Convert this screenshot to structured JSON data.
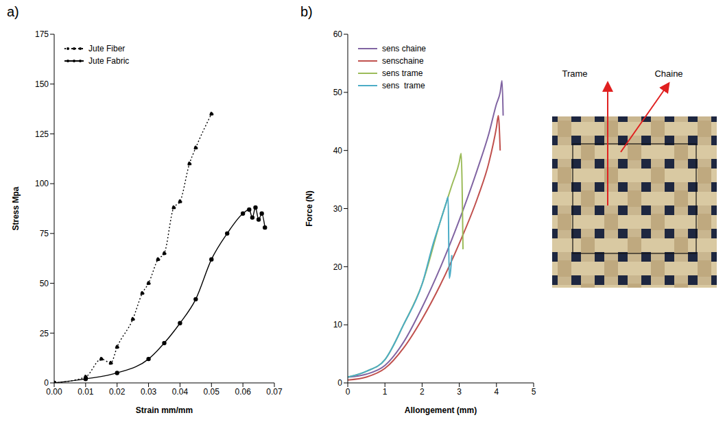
{
  "chart_data": [
    {
      "panel": "a)",
      "type": "line",
      "x_label": "Strain mm/mm",
      "y_label": "Stress Mpa",
      "xlim": [
        0,
        0.07
      ],
      "xticks": [
        {
          "value": 0,
          "label": "0.00"
        },
        {
          "value": 0.01,
          "label": "0.01"
        },
        {
          "value": 0.02,
          "label": "0.02"
        },
        {
          "value": 0.03,
          "label": "0.03"
        },
        {
          "value": 0.04,
          "label": "0.04"
        },
        {
          "value": 0.05,
          "label": "0.05"
        },
        {
          "value": 0.06,
          "label": "0.06"
        },
        {
          "value": 0.07,
          "label": "0.07"
        }
      ],
      "ylim": [
        0,
        175
      ],
      "yticks": [
        0,
        25,
        50,
        75,
        100,
        125,
        150,
        175
      ],
      "grid": false,
      "legend": "upper left",
      "series": [
        {
          "name": "Jute Fiber",
          "color": "#000000",
          "line_style": "dotted",
          "marker": "circle",
          "x": [
            0,
            0.01,
            0.015,
            0.018,
            0.02,
            0.025,
            0.028,
            0.03,
            0.033,
            0.035,
            0.038,
            0.04,
            0.043,
            0.045,
            0.05
          ],
          "values": [
            0,
            3,
            12,
            10,
            18,
            32,
            45,
            50,
            62,
            65,
            88,
            91,
            110,
            118,
            135
          ]
        },
        {
          "name": "Jute Fabric",
          "color": "#000000",
          "line_style": "solid",
          "marker": "circle",
          "x": [
            0,
            0.01,
            0.02,
            0.03,
            0.035,
            0.04,
            0.045,
            0.05,
            0.055,
            0.06,
            0.062,
            0.063,
            0.064,
            0.065,
            0.066,
            0.067
          ],
          "values": [
            0,
            2,
            5,
            12,
            20,
            30,
            42,
            62,
            75,
            85,
            87,
            83,
            88,
            82,
            85,
            78
          ]
        }
      ]
    },
    {
      "panel": "b)",
      "type": "line",
      "x_label": "Allongement (mm)",
      "y_label": "Force (N)",
      "xlim": [
        0,
        5
      ],
      "xticks": [
        0,
        1,
        2,
        3,
        4,
        5
      ],
      "ylim": [
        0,
        60
      ],
      "yticks": [
        0,
        10,
        20,
        30,
        40,
        50,
        60
      ],
      "grid": false,
      "legend": "upper left",
      "annotations": [
        "Trame",
        "Chaine"
      ],
      "series": [
        {
          "name": "sens chaine",
          "color": "#8064a2",
          "line_style": "solid",
          "marker": "none",
          "x": [
            0,
            0.5,
            1,
            1.5,
            2,
            2.5,
            3,
            3.5,
            3.8,
            4,
            4.1,
            4.15,
            4.18
          ],
          "values": [
            1,
            1.5,
            3,
            7,
            13,
            20,
            28,
            37,
            43,
            48,
            50,
            52,
            46
          ]
        },
        {
          "name": "senschaine",
          "color": "#c0504d",
          "line_style": "solid",
          "marker": "none",
          "x": [
            0,
            0.5,
            1,
            1.5,
            2,
            2.5,
            3,
            3.5,
            3.8,
            4,
            4.05,
            4.1
          ],
          "values": [
            0.5,
            1,
            2.5,
            6,
            11,
            17,
            24,
            32,
            38,
            44,
            46,
            40
          ]
        },
        {
          "name": "sens trame",
          "color": "#9bbb59",
          "line_style": "solid",
          "marker": "none",
          "x": [
            0,
            0.5,
            1,
            1.5,
            2,
            2.5,
            2.8,
            3,
            3.05,
            3.1
          ],
          "values": [
            1,
            2,
            4,
            10,
            17,
            28,
            34,
            38,
            39.5,
            23
          ]
        },
        {
          "name": "sens  trame",
          "color": "#4bacc6",
          "line_style": "solid",
          "marker": "none",
          "x": [
            0,
            0.5,
            1,
            1.5,
            2,
            2.3,
            2.5,
            2.65,
            2.7,
            2.73,
            2.8
          ],
          "values": [
            1,
            2,
            4,
            10,
            17,
            24,
            28,
            31,
            32,
            18,
            22
          ]
        }
      ]
    }
  ]
}
